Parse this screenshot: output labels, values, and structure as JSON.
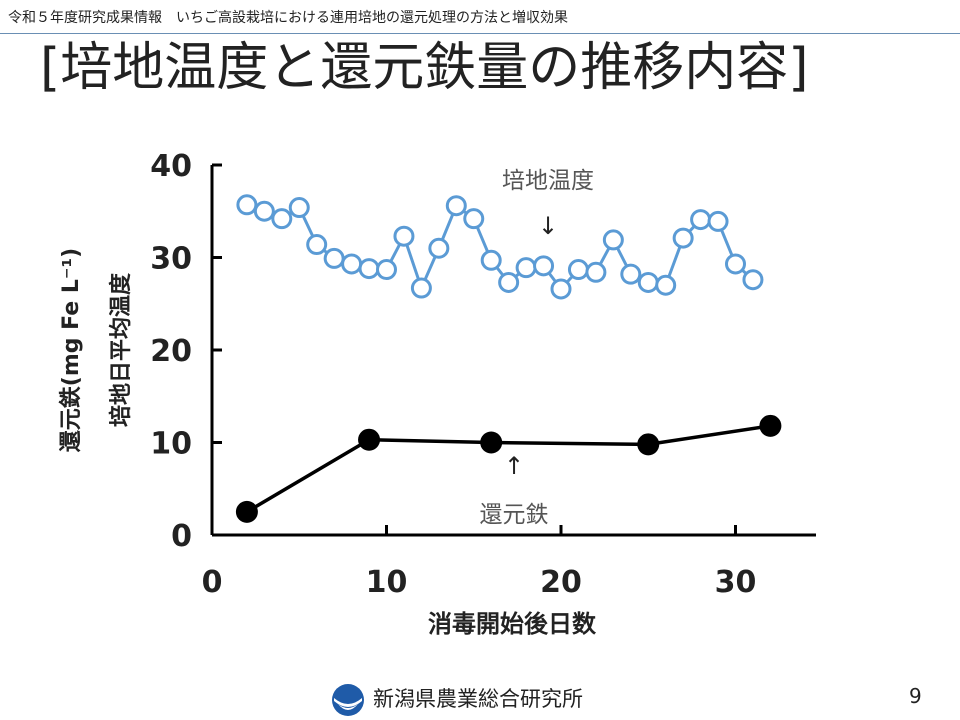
{
  "header": {
    "text": "令和５年度研究成果情報　いちご高設栽培における連用培地の還元処理の方法と増収効果"
  },
  "title": "[培地温度と還元鉄量の推移内容]",
  "chart_data": {
    "type": "line",
    "xlabel": "消毒開始後日数",
    "ylabel_line1": "還元鉄(mg Fe L⁻¹)",
    "ylabel_line2": "培地日平均温度",
    "xlim": [
      0,
      35
    ],
    "ylim": [
      0,
      40
    ],
    "x_ticks": [
      0,
      10,
      20,
      30
    ],
    "y_ticks": [
      0,
      10,
      20,
      30,
      40
    ],
    "grid": false,
    "series": [
      {
        "name": "培地温度",
        "color": "#5b9bd5",
        "marker": "open-circle",
        "x": [
          2,
          3,
          4,
          5,
          6,
          7,
          8,
          9,
          10,
          11,
          12,
          13,
          14,
          15,
          16,
          17,
          18,
          19,
          20,
          21,
          22,
          23,
          24,
          25,
          26,
          27,
          28,
          29,
          30,
          31
        ],
        "y": [
          35.7,
          35.0,
          34.2,
          35.4,
          31.4,
          29.9,
          29.3,
          28.8,
          28.7,
          32.3,
          26.7,
          31.0,
          35.6,
          34.2,
          29.7,
          27.3,
          28.9,
          29.1,
          26.6,
          28.7,
          28.4,
          31.9,
          28.2,
          27.3,
          27.0,
          32.1,
          34.1,
          33.9,
          29.3,
          27.6
        ]
      },
      {
        "name": "還元鉄",
        "color": "#000000",
        "marker": "filled-circle",
        "x": [
          2,
          9,
          16,
          25,
          32
        ],
        "y": [
          2.5,
          10.3,
          10.0,
          9.8,
          11.8
        ]
      }
    ],
    "annotations": [
      {
        "text": "培地温度",
        "arrow": "↓"
      },
      {
        "text": "還元鉄",
        "arrow": "↑"
      }
    ]
  },
  "footer": {
    "org": "新潟県農業総合研究所",
    "page": "9"
  },
  "colors": {
    "header_rule": "#6a8fb4",
    "logo": "#1f5ba8"
  }
}
